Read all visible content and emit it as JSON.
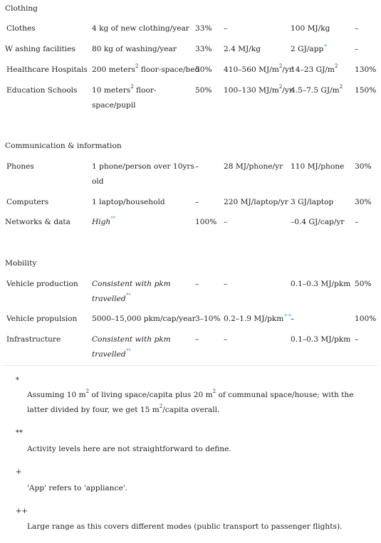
{
  "sections": {
    "clothing": "Clothing",
    "communication": "Communication & information",
    "mobility": "Mobility"
  },
  "rows": {
    "clothes": {
      "name": "Clothes",
      "activity": "4 kg of new clothing/year",
      "share": "33%",
      "operational": "–",
      "embodied": "100 MJ/kg",
      "reduction": "–"
    },
    "washing": {
      "name": "W ashing facilities",
      "activity": "80 kg of washing/year",
      "share": "33%",
      "operational": "2.4 MJ/kg",
      "embodied": "2 GJ/app",
      "embodied_ref": "+",
      "reduction": "–"
    },
    "hospitals": {
      "name": "Healthcare Hospitals",
      "activity_a": "200 meters",
      "activity_sup": "2",
      "activity_b": " floor-space/bed",
      "share": "50%",
      "operational_a": "410–560 MJ/m",
      "operational_sup": "2",
      "operational_b": "/yr",
      "embodied_a": "14–23 GJ/m",
      "embodied_sup": "2",
      "reduction": "130%"
    },
    "schools": {
      "name": "Education Schools",
      "activity_line1a": "10 meters",
      "activity_sup": "2",
      "activity_line1b": " floor-",
      "activity_line2": "space/pupil",
      "share": "50%",
      "operational_a": "100–130 MJ/m",
      "operational_sup": "2",
      "operational_b": "/yr",
      "embodied_a": "4.5–7.5 GJ/m",
      "embodied_sup": "2",
      "reduction": "150%"
    },
    "phones": {
      "name": "Phones",
      "activity_line1": "1 phone/person over 10yrs",
      "activity_line2": "old",
      "share": "–",
      "operational": "28 MJ/phone/yr",
      "embodied": "110 MJ/phone",
      "reduction": "30%"
    },
    "computers": {
      "name": "Computers",
      "activity": "1 laptop/household",
      "share": "–",
      "operational": "220 MJ/laptop/yr",
      "embodied": "3 GJ/laptop",
      "reduction": "30%"
    },
    "networks": {
      "name": "Networks & data",
      "activity": "High",
      "activity_ref": "**",
      "share": "100%",
      "operational": "–",
      "embodied": "–0.4 GJ/cap/yr",
      "reduction": "–"
    },
    "vehicle_production": {
      "name": "Vehicle production",
      "activity_line1": "Consistent with pkm",
      "activity_line2": "travelled",
      "activity_ref": "**",
      "share": "–",
      "operational": "–",
      "embodied": "0.1–0.3 MJ/pkm",
      "reduction": "50%"
    },
    "vehicle_propulsion": {
      "name": "Vehicle propulsion",
      "activity": "5000–15,000 pkm/cap/year",
      "share": "3–10%",
      "operational": "0.2–1.9 MJ/pkm",
      "operational_ref": "++",
      "embodied": "–",
      "reduction": "100%"
    },
    "infrastructure": {
      "name": "Infrastructure",
      "activity_line1": "Consistent with pkm",
      "activity_line2": "travelled",
      "activity_ref": "**",
      "share": "–",
      "operational": "–",
      "embodied": "0.1–0.3 MJ/pkm",
      "reduction": "–"
    }
  },
  "footnotes": [
    {
      "mark": "*",
      "text_a": "Assuming 10 m",
      "sup_a": "2",
      "text_b": " of living space/capita plus 20 m",
      "sup_b": "2",
      "text_c": " of communal space/house; with the latter divided by four, we get 15 m",
      "sup_c": "2",
      "text_d": "/capita overall."
    },
    {
      "mark": "**",
      "text": "Activity levels here are not straightforward to define."
    },
    {
      "mark": "+",
      "text": "'App' refers to 'appliance'."
    },
    {
      "mark": "++",
      "text": "Large range as this covers different modes (public transport to passenger flights)."
    }
  ]
}
